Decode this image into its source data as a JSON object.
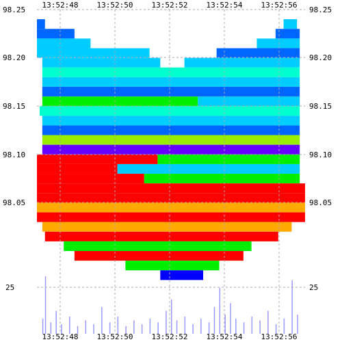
{
  "chart_data": {
    "type": "heatmap",
    "title": "",
    "xlabel": "",
    "ylabel": "",
    "grid": true,
    "x_ticks": [
      "13:52:48",
      "13:52:50",
      "13:52:52",
      "13:52:54",
      "13:52:56"
    ],
    "y_ticks": [
      "98.25",
      "98.20",
      "98.15",
      "98.10",
      "98.05"
    ],
    "volume_tick": "25",
    "ylim": [
      97.99,
      98.25
    ],
    "volume_max": 30,
    "colors": {
      "low": "#0000ff",
      "blue": "#0066ff",
      "cyan": "#00ccff",
      "aqua": "#00ffcc",
      "green": "#00ee00",
      "lime": "#99ee00",
      "yellow": "#ffee00",
      "orange": "#ffaa00",
      "high": "#ff0000",
      "purple": "#6600ff",
      "volume": "#9999ff"
    },
    "bands": [
      {
        "price": 98.235,
        "start": 0.0,
        "end": 0.03,
        "color": "blue"
      },
      {
        "price": 98.235,
        "start": 0.92,
        "end": 0.97,
        "color": "cyan"
      },
      {
        "price": 98.225,
        "start": 0.0,
        "end": 0.14,
        "color": "blue"
      },
      {
        "price": 98.225,
        "start": 0.89,
        "end": 0.98,
        "color": "blue"
      },
      {
        "price": 98.215,
        "start": 0.0,
        "end": 0.2,
        "color": "cyan"
      },
      {
        "price": 98.215,
        "start": 0.82,
        "end": 0.98,
        "color": "cyan"
      },
      {
        "price": 98.205,
        "start": 0.0,
        "end": 0.42,
        "color": "cyan"
      },
      {
        "price": 98.205,
        "start": 0.67,
        "end": 0.98,
        "color": "blue"
      },
      {
        "price": 98.195,
        "start": 0.02,
        "end": 0.46,
        "color": "cyan"
      },
      {
        "price": 98.195,
        "start": 0.55,
        "end": 0.98,
        "color": "cyan"
      },
      {
        "price": 98.185,
        "start": 0.02,
        "end": 0.98,
        "color": "aqua"
      },
      {
        "price": 98.175,
        "start": 0.02,
        "end": 0.98,
        "color": "cyan"
      },
      {
        "price": 98.165,
        "start": 0.02,
        "end": 0.98,
        "color": "blue"
      },
      {
        "price": 98.155,
        "start": 0.02,
        "end": 0.6,
        "color": "green"
      },
      {
        "price": 98.155,
        "start": 0.6,
        "end": 0.98,
        "color": "cyan"
      },
      {
        "price": 98.145,
        "start": 0.01,
        "end": 0.98,
        "color": "aqua"
      },
      {
        "price": 98.135,
        "start": 0.02,
        "end": 0.98,
        "color": "cyan"
      },
      {
        "price": 98.125,
        "start": 0.02,
        "end": 0.98,
        "color": "blue"
      },
      {
        "price": 98.115,
        "start": 0.02,
        "end": 0.98,
        "color": "lime"
      },
      {
        "price": 98.105,
        "start": 0.02,
        "end": 0.98,
        "color": "purple"
      },
      {
        "price": 98.095,
        "start": 0.0,
        "end": 0.45,
        "color": "high"
      },
      {
        "price": 98.095,
        "start": 0.45,
        "end": 0.98,
        "color": "green"
      },
      {
        "price": 98.085,
        "start": 0.0,
        "end": 0.3,
        "color": "high"
      },
      {
        "price": 98.085,
        "start": 0.3,
        "end": 0.98,
        "color": "cyan"
      },
      {
        "price": 98.075,
        "start": 0.0,
        "end": 0.4,
        "color": "high"
      },
      {
        "price": 98.075,
        "start": 0.4,
        "end": 0.98,
        "color": "green"
      },
      {
        "price": 98.065,
        "start": 0.0,
        "end": 1.0,
        "color": "high"
      },
      {
        "price": 98.055,
        "start": 0.0,
        "end": 1.0,
        "color": "high"
      },
      {
        "price": 98.045,
        "start": 0.0,
        "end": 1.0,
        "color": "orange"
      },
      {
        "price": 98.035,
        "start": 0.0,
        "end": 1.0,
        "color": "high"
      },
      {
        "price": 98.025,
        "start": 0.02,
        "end": 0.95,
        "color": "orange"
      },
      {
        "price": 98.015,
        "start": 0.03,
        "end": 0.9,
        "color": "high"
      },
      {
        "price": 98.005,
        "start": 0.1,
        "end": 0.8,
        "color": "green"
      },
      {
        "price": 97.995,
        "start": 0.14,
        "end": 0.77,
        "color": "high"
      },
      {
        "price": 97.985,
        "start": 0.33,
        "end": 0.68,
        "color": "green"
      },
      {
        "price": 97.975,
        "start": 0.46,
        "end": 0.62,
        "color": "low"
      }
    ],
    "volume_bars": [
      {
        "x": 0.02,
        "v": 8
      },
      {
        "x": 0.03,
        "v": 30
      },
      {
        "x": 0.05,
        "v": 6
      },
      {
        "x": 0.07,
        "v": 12
      },
      {
        "x": 0.09,
        "v": 5
      },
      {
        "x": 0.12,
        "v": 9
      },
      {
        "x": 0.15,
        "v": 4
      },
      {
        "x": 0.18,
        "v": 7
      },
      {
        "x": 0.21,
        "v": 5
      },
      {
        "x": 0.24,
        "v": 14
      },
      {
        "x": 0.27,
        "v": 6
      },
      {
        "x": 0.3,
        "v": 9
      },
      {
        "x": 0.33,
        "v": 4
      },
      {
        "x": 0.36,
        "v": 7
      },
      {
        "x": 0.39,
        "v": 5
      },
      {
        "x": 0.42,
        "v": 8
      },
      {
        "x": 0.45,
        "v": 6
      },
      {
        "x": 0.48,
        "v": 12
      },
      {
        "x": 0.5,
        "v": 18
      },
      {
        "x": 0.52,
        "v": 7
      },
      {
        "x": 0.55,
        "v": 9
      },
      {
        "x": 0.58,
        "v": 5
      },
      {
        "x": 0.61,
        "v": 8
      },
      {
        "x": 0.64,
        "v": 6
      },
      {
        "x": 0.66,
        "v": 14
      },
      {
        "x": 0.68,
        "v": 24
      },
      {
        "x": 0.7,
        "v": 10
      },
      {
        "x": 0.72,
        "v": 16
      },
      {
        "x": 0.74,
        "v": 8
      },
      {
        "x": 0.77,
        "v": 6
      },
      {
        "x": 0.8,
        "v": 9
      },
      {
        "x": 0.83,
        "v": 7
      },
      {
        "x": 0.86,
        "v": 12
      },
      {
        "x": 0.89,
        "v": 5
      },
      {
        "x": 0.92,
        "v": 8
      },
      {
        "x": 0.95,
        "v": 28
      },
      {
        "x": 0.97,
        "v": 10
      }
    ]
  }
}
